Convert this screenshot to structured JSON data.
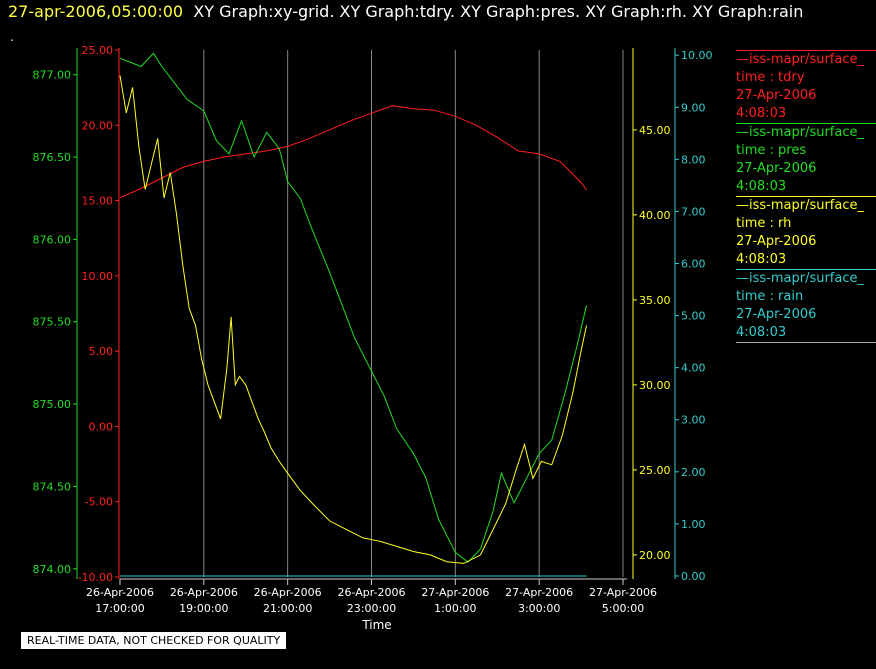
{
  "header": {
    "timestamp": "27-apr-2006,05:00:00",
    "graphs": "XY Graph:xy-grid.  XY Graph:tdry.  XY Graph:pres.  XY Graph:rh.  XY Graph:rain"
  },
  "dot": ".",
  "banner": "REAL-TIME DATA, NOT CHECKED FOR QUALITY",
  "legend": [
    {
      "name": "—iss-mapr/surface_",
      "var": "time : tdry",
      "date": "27-Apr-2006",
      "time": "4:08:03",
      "color": "#ff2020"
    },
    {
      "name": "—iss-mapr/surface_",
      "var": "time : pres",
      "date": "27-Apr-2006",
      "time": "4:08:03",
      "color": "#22dd22"
    },
    {
      "name": "—iss-mapr/surface_",
      "var": "time : rh",
      "date": "27-Apr-2006",
      "time": "4:08:03",
      "color": "#ffff22"
    },
    {
      "name": "—iss-mapr/surface_",
      "var": "time : rain",
      "date": "27-Apr-2006",
      "time": "4:08:03",
      "color": "#33cccc"
    }
  ],
  "chart_data": {
    "type": "line",
    "xlabel": "Time",
    "x_ticks": [
      {
        "d": "26-Apr-2006",
        "t": "17:00:00"
      },
      {
        "d": "26-Apr-2006",
        "t": "19:00:00"
      },
      {
        "d": "26-Apr-2006",
        "t": "21:00:00"
      },
      {
        "d": "26-Apr-2006",
        "t": "23:00:00"
      },
      {
        "d": "27-Apr-2006",
        "t": "1:00:00"
      },
      {
        "d": "27-Apr-2006",
        "t": "3:00:00"
      },
      {
        "d": "27-Apr-2006",
        "t": "5:00:00"
      }
    ],
    "x_tick_hours": [
      17,
      19,
      21,
      23,
      25,
      27,
      29
    ],
    "xlim_hours": [
      17,
      29
    ],
    "data_end_hours": 28.13,
    "grid": "vertical",
    "axes": {
      "tdry": {
        "color": "#ff2020",
        "ticks": [
          "25.00",
          "20.00",
          "15.00",
          "10.00",
          "5.00",
          "0.00",
          "-5.00",
          "-10.00"
        ],
        "ylim": [
          -10,
          25
        ]
      },
      "pres": {
        "color": "#22dd22",
        "ticks": [
          "877.00",
          "876.50",
          "876.00",
          "875.50",
          "875.00",
          "874.50",
          "874.00"
        ],
        "ylim": [
          873.95,
          877.15
        ]
      },
      "rh": {
        "color": "#ffff22",
        "ticks": [
          "45.00",
          "40.00",
          "35.00",
          "30.00",
          "25.00",
          "20.00"
        ],
        "ylim": [
          18.7,
          49.7
        ]
      },
      "rain": {
        "color": "#33cccc",
        "ticks": [
          "10.00",
          "9.00",
          "8.00",
          "7.00",
          "6.00",
          "5.00",
          "4.00",
          "3.00",
          "2.00",
          "1.00",
          "0.00"
        ],
        "ylim": [
          -0.02,
          10.1
        ]
      }
    },
    "series": [
      {
        "key": "tdry",
        "color": "#ff2020",
        "points": [
          [
            17.0,
            15.2
          ],
          [
            17.5,
            15.8
          ],
          [
            18.0,
            16.5
          ],
          [
            18.5,
            17.2
          ],
          [
            19.0,
            17.6
          ],
          [
            19.5,
            17.9
          ],
          [
            20.0,
            18.1
          ],
          [
            20.5,
            18.3
          ],
          [
            21.0,
            18.6
          ],
          [
            21.5,
            19.1
          ],
          [
            22.0,
            19.7
          ],
          [
            22.5,
            20.3
          ],
          [
            23.0,
            20.8
          ],
          [
            23.5,
            21.3
          ],
          [
            24.0,
            21.1
          ],
          [
            24.5,
            21.0
          ],
          [
            25.0,
            20.6
          ],
          [
            25.5,
            20.0
          ],
          [
            26.0,
            19.2
          ],
          [
            26.5,
            18.3
          ],
          [
            27.0,
            18.1
          ],
          [
            27.5,
            17.6
          ],
          [
            28.0,
            16.2
          ],
          [
            28.13,
            15.7
          ]
        ]
      },
      {
        "key": "pres",
        "color": "#22dd22",
        "points": [
          [
            17.0,
            877.1
          ],
          [
            17.5,
            877.05
          ],
          [
            17.8,
            877.13
          ],
          [
            18.0,
            877.05
          ],
          [
            18.3,
            876.95
          ],
          [
            18.6,
            876.85
          ],
          [
            19.0,
            876.78
          ],
          [
            19.3,
            876.6
          ],
          [
            19.6,
            876.52
          ],
          [
            19.9,
            876.72
          ],
          [
            20.2,
            876.5
          ],
          [
            20.5,
            876.65
          ],
          [
            20.8,
            876.55
          ],
          [
            21.0,
            876.35
          ],
          [
            21.3,
            876.25
          ],
          [
            21.6,
            876.05
          ],
          [
            22.0,
            875.8
          ],
          [
            22.3,
            875.6
          ],
          [
            22.6,
            875.4
          ],
          [
            23.0,
            875.2
          ],
          [
            23.3,
            875.05
          ],
          [
            23.6,
            874.85
          ],
          [
            24.0,
            874.7
          ],
          [
            24.3,
            874.55
          ],
          [
            24.6,
            874.3
          ],
          [
            25.0,
            874.1
          ],
          [
            25.3,
            874.04
          ],
          [
            25.6,
            874.12
          ],
          [
            25.9,
            874.35
          ],
          [
            26.1,
            874.58
          ],
          [
            26.4,
            874.4
          ],
          [
            26.7,
            874.55
          ],
          [
            27.0,
            874.7
          ],
          [
            27.3,
            874.78
          ],
          [
            27.6,
            875.05
          ],
          [
            27.9,
            875.35
          ],
          [
            28.13,
            875.6
          ]
        ]
      },
      {
        "key": "rh",
        "color": "#ffff22",
        "points": [
          [
            17.0,
            48.2
          ],
          [
            17.15,
            46.0
          ],
          [
            17.3,
            47.5
          ],
          [
            17.45,
            44.0
          ],
          [
            17.6,
            41.5
          ],
          [
            17.75,
            43.0
          ],
          [
            17.9,
            44.5
          ],
          [
            18.05,
            41.0
          ],
          [
            18.2,
            42.5
          ],
          [
            18.35,
            40.0
          ],
          [
            18.5,
            37.0
          ],
          [
            18.65,
            34.5
          ],
          [
            18.8,
            33.5
          ],
          [
            18.95,
            31.5
          ],
          [
            19.1,
            30.0
          ],
          [
            19.25,
            29.0
          ],
          [
            19.4,
            28.0
          ],
          [
            19.55,
            31.0
          ],
          [
            19.65,
            34.0
          ],
          [
            19.75,
            30.0
          ],
          [
            19.85,
            30.5
          ],
          [
            20.0,
            30.0
          ],
          [
            20.15,
            29.0
          ],
          [
            20.3,
            28.0
          ],
          [
            20.45,
            27.2
          ],
          [
            20.6,
            26.3
          ],
          [
            20.8,
            25.5
          ],
          [
            21.0,
            24.8
          ],
          [
            21.3,
            23.8
          ],
          [
            21.6,
            23.0
          ],
          [
            22.0,
            22.0
          ],
          [
            22.4,
            21.5
          ],
          [
            22.8,
            21.0
          ],
          [
            23.2,
            20.8
          ],
          [
            23.6,
            20.5
          ],
          [
            24.0,
            20.2
          ],
          [
            24.4,
            20.0
          ],
          [
            24.8,
            19.6
          ],
          [
            25.2,
            19.5
          ],
          [
            25.6,
            20.0
          ],
          [
            25.9,
            21.5
          ],
          [
            26.2,
            23.0
          ],
          [
            26.45,
            25.0
          ],
          [
            26.65,
            26.5
          ],
          [
            26.85,
            24.5
          ],
          [
            27.05,
            25.5
          ],
          [
            27.3,
            25.3
          ],
          [
            27.55,
            27.0
          ],
          [
            27.8,
            29.5
          ],
          [
            28.0,
            32.0
          ],
          [
            28.13,
            33.5
          ]
        ]
      },
      {
        "key": "rain",
        "color": "#33cccc",
        "points": [
          [
            17.0,
            0.0
          ],
          [
            28.13,
            0.0
          ]
        ]
      }
    ]
  }
}
